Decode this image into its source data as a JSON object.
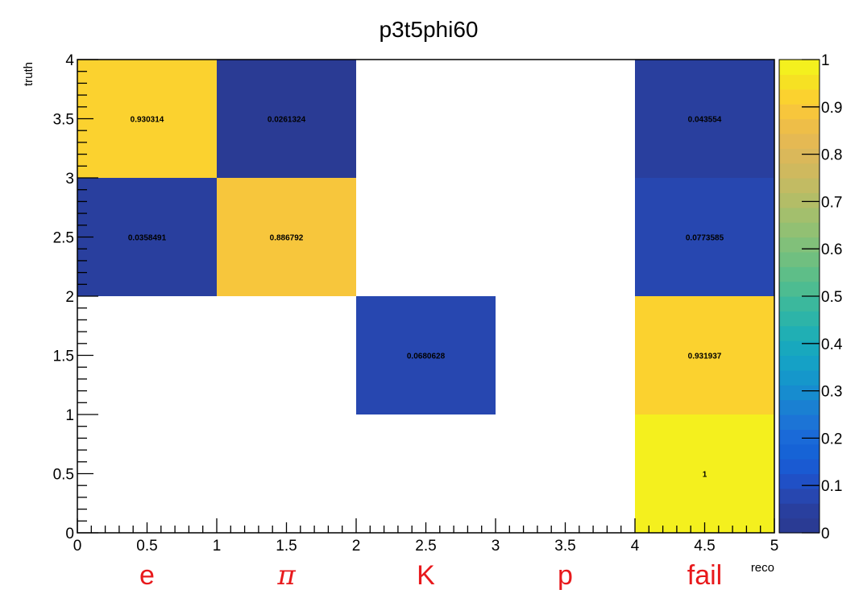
{
  "chart_data": {
    "type": "heatmap",
    "title": "p3t5phi60",
    "xlabel": "reco",
    "ylabel": "truth",
    "xlim": [
      0,
      5
    ],
    "ylim": [
      0,
      4
    ],
    "zlim": [
      0,
      1
    ],
    "x_ticks": [
      "0",
      "0.5",
      "1",
      "1.5",
      "2",
      "2.5",
      "3",
      "3.5",
      "4",
      "4.5",
      "5"
    ],
    "y_ticks": [
      "0",
      "0.5",
      "1",
      "1.5",
      "2",
      "2.5",
      "3",
      "3.5",
      "4"
    ],
    "colorbar_ticks": [
      "0",
      "0.1",
      "0.2",
      "0.3",
      "0.4",
      "0.5",
      "0.6",
      "0.7",
      "0.8",
      "0.9",
      "1"
    ],
    "x_categories": [
      "e",
      "π",
      "K",
      "p",
      "fail"
    ],
    "cells": [
      {
        "x": [
          0,
          1
        ],
        "y": [
          3,
          4
        ],
        "value": 0.930314,
        "label": "0.930314"
      },
      {
        "x": [
          1,
          2
        ],
        "y": [
          3,
          4
        ],
        "value": 0.0261324,
        "label": "0.0261324"
      },
      {
        "x": [
          4,
          5
        ],
        "y": [
          3,
          4
        ],
        "value": 0.043554,
        "label": "0.043554"
      },
      {
        "x": [
          0,
          1
        ],
        "y": [
          2,
          3
        ],
        "value": 0.0358491,
        "label": "0.0358491"
      },
      {
        "x": [
          1,
          2
        ],
        "y": [
          2,
          3
        ],
        "value": 0.886792,
        "label": "0.886792"
      },
      {
        "x": [
          4,
          5
        ],
        "y": [
          2,
          3
        ],
        "value": 0.0773585,
        "label": "0.0773585"
      },
      {
        "x": [
          2,
          3
        ],
        "y": [
          1,
          2
        ],
        "value": 0.0680628,
        "label": "0.0680628"
      },
      {
        "x": [
          4,
          5
        ],
        "y": [
          1,
          2
        ],
        "value": 0.931937,
        "label": "0.931937"
      },
      {
        "x": [
          4,
          5
        ],
        "y": [
          0,
          1
        ],
        "value": 1,
        "label": "1"
      }
    ],
    "colormap": [
      "#2a3b94",
      "#293f9e",
      "#2747b0",
      "#2050c6",
      "#1a5ad2",
      "#1663d6",
      "#1a6ad8",
      "#1c74d6",
      "#1a80d2",
      "#178ccf",
      "#1597cb",
      "#15a1c6",
      "#18a8be",
      "#20afb4",
      "#2db4a8",
      "#3bb89d",
      "#4dbc91",
      "#5ebe88",
      "#70bf80",
      "#81c07a",
      "#92c073",
      "#a3bf6d",
      "#b3bd67",
      "#c2bb63",
      "#cfb95e",
      "#dab85a",
      "#e5b953",
      "#eebe48",
      "#f7c63c",
      "#fbd22f",
      "#f6e123",
      "#f4f01e"
    ],
    "grid": false,
    "legend": "colorbar-right"
  }
}
